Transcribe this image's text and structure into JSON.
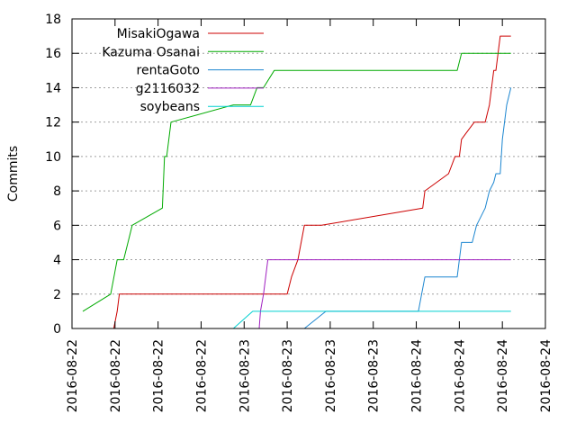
{
  "chart_data": {
    "type": "line",
    "title": "",
    "xlabel": "",
    "ylabel": "Commits",
    "ylim": [
      0,
      18
    ],
    "yticks": [
      0,
      2,
      4,
      6,
      8,
      10,
      12,
      14,
      16,
      18
    ],
    "xlim": [
      0,
      11
    ],
    "xtick_labels": [
      "2016-08-22",
      "2016-08-22",
      "2016-08-22",
      "2016-08-22",
      "2016-08-23",
      "2016-08-23",
      "2016-08-23",
      "2016-08-23",
      "2016-08-24",
      "2016-08-24",
      "2016-08-24",
      "2016-08-24"
    ],
    "grid": "y-dotted",
    "legend_position": "top-left",
    "series": [
      {
        "name": "MisakiOgawa",
        "color": "#cc0000",
        "points": [
          [
            0.97,
            0
          ],
          [
            1.05,
            1
          ],
          [
            1.1,
            2
          ],
          [
            5.0,
            2
          ],
          [
            5.1,
            3
          ],
          [
            5.25,
            4
          ],
          [
            5.4,
            6
          ],
          [
            5.8,
            6
          ],
          [
            8.15,
            7
          ],
          [
            8.2,
            8
          ],
          [
            8.75,
            9
          ],
          [
            8.9,
            10
          ],
          [
            9.0,
            10
          ],
          [
            9.05,
            11
          ],
          [
            9.2,
            11.5
          ],
          [
            9.35,
            12
          ],
          [
            9.6,
            12
          ],
          [
            9.7,
            13
          ],
          [
            9.75,
            14
          ],
          [
            9.8,
            15
          ],
          [
            9.85,
            15
          ],
          [
            9.9,
            16
          ],
          [
            9.95,
            17
          ],
          [
            10.2,
            17
          ]
        ]
      },
      {
        "name": "Kazuma Osanai",
        "color": "#00aa00",
        "points": [
          [
            0.25,
            1
          ],
          [
            0.9,
            2
          ],
          [
            1.05,
            4
          ],
          [
            1.2,
            4
          ],
          [
            1.3,
            5
          ],
          [
            1.4,
            6
          ],
          [
            2.1,
            7
          ],
          [
            2.15,
            10
          ],
          [
            2.2,
            10
          ],
          [
            2.3,
            12
          ],
          [
            3.75,
            13
          ],
          [
            4.15,
            13
          ],
          [
            4.3,
            14
          ],
          [
            4.45,
            14
          ],
          [
            4.7,
            15
          ],
          [
            8.95,
            15
          ],
          [
            9.05,
            16
          ],
          [
            10.2,
            16
          ]
        ]
      },
      {
        "name": "rentaGoto",
        "color": "#1c86d0",
        "points": [
          [
            5.4,
            0
          ],
          [
            5.9,
            1
          ],
          [
            8.05,
            1
          ],
          [
            8.2,
            3
          ],
          [
            8.95,
            3
          ],
          [
            9.05,
            5
          ],
          [
            9.3,
            5
          ],
          [
            9.4,
            6
          ],
          [
            9.5,
            6.5
          ],
          [
            9.6,
            7
          ],
          [
            9.7,
            8
          ],
          [
            9.8,
            8.5
          ],
          [
            9.85,
            9
          ],
          [
            9.95,
            9
          ],
          [
            10.0,
            11
          ],
          [
            10.05,
            12
          ],
          [
            10.1,
            13
          ],
          [
            10.2,
            14
          ]
        ]
      },
      {
        "name": "g2116032",
        "color": "#a020c0",
        "points": [
          [
            4.35,
            0
          ],
          [
            4.38,
            1
          ],
          [
            4.45,
            2
          ],
          [
            4.5,
            3
          ],
          [
            4.55,
            4
          ],
          [
            10.2,
            4
          ]
        ]
      },
      {
        "name": "soybeans",
        "color": "#00d0d0",
        "points": [
          [
            3.75,
            0
          ],
          [
            4.2,
            1
          ],
          [
            10.2,
            1
          ]
        ]
      }
    ]
  }
}
